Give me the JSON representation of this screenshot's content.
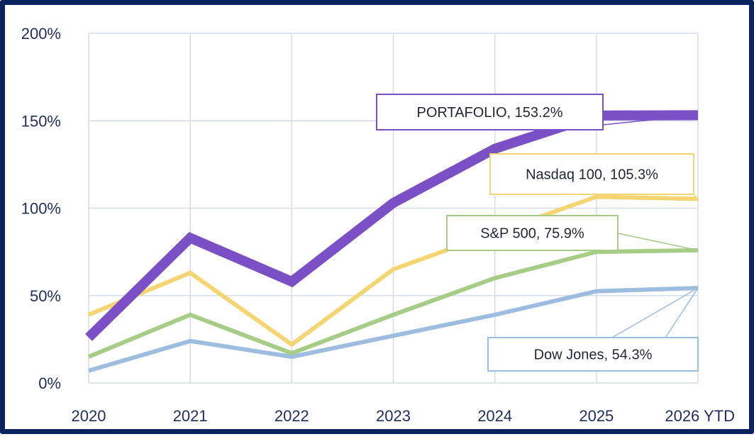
{
  "chart_data": {
    "type": "line",
    "title": "",
    "xlabel": "",
    "ylabel": "",
    "categories": [
      "2020",
      "2021",
      "2022",
      "2023",
      "2024",
      "2025",
      "2026 YTD"
    ],
    "y_ticks": [
      "0%",
      "50%",
      "100%",
      "150%",
      "200%"
    ],
    "ylim": [
      0,
      200
    ],
    "grid": true,
    "series": [
      {
        "name": "Dow Jones",
        "label": "Dow Jones, 54.3%",
        "color": "#9dbde0",
        "values": [
          7,
          24,
          15,
          27,
          39,
          52.5,
          54.3
        ]
      },
      {
        "name": "S&P 500",
        "label": "S&P 500, 75.9%",
        "color": "#a6cd86",
        "values": [
          15,
          39,
          17,
          39,
          60,
          75,
          75.9
        ]
      },
      {
        "name": "Nasdaq 100",
        "label": "Nasdaq 100, 105.3%",
        "color": "#f5d572",
        "values": [
          39,
          63,
          22,
          65,
          86,
          106.5,
          105.3
        ]
      },
      {
        "name": "PORTAFOLIO",
        "label": "PORTAFOLIO, 153.2%",
        "color": "#7b4fc6",
        "values": [
          26,
          83,
          58,
          103,
          134,
          153,
          153.2
        ]
      }
    ]
  }
}
